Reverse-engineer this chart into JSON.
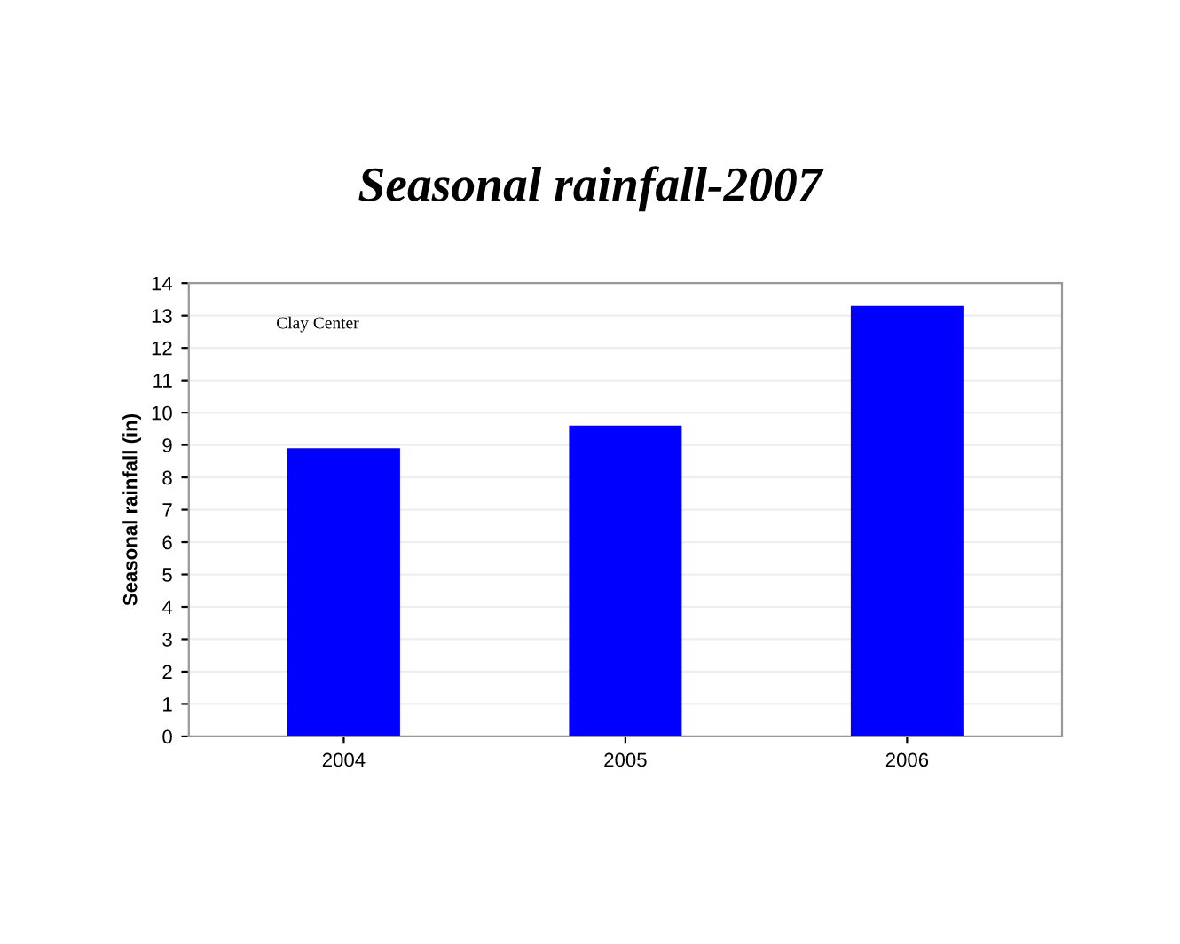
{
  "chart_data": {
    "type": "bar",
    "title": "Seasonal rainfall-2007",
    "ylabel": "Seasonal rainfall (in)",
    "categories": [
      "2004",
      "2005",
      "2006"
    ],
    "values": [
      8.9,
      9.6,
      13.3
    ],
    "color": "#0000ff",
    "ylim": [
      0,
      14
    ],
    "yticks": [
      0,
      1,
      2,
      3,
      4,
      5,
      6,
      7,
      8,
      9,
      10,
      11,
      12,
      13,
      14
    ],
    "grid": "y",
    "annotations": [
      "Clay Center"
    ]
  }
}
